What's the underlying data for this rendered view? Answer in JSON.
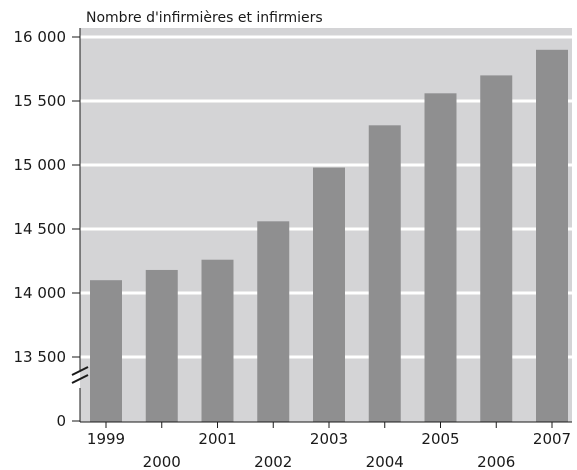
{
  "chart_data": {
    "type": "bar",
    "title": "Nombre d'infirmières et infirmiers",
    "xlabel": "",
    "ylabel": "",
    "categories": [
      "1999",
      "2000",
      "2001",
      "2002",
      "2003",
      "2004",
      "2005",
      "2006",
      "2007"
    ],
    "values": [
      14100,
      14180,
      14260,
      14560,
      14980,
      15310,
      15560,
      15700,
      15900
    ],
    "ylim": [
      13250,
      16000
    ],
    "axis_break": true,
    "yticks": [
      {
        "value": 16000,
        "label": "16 000"
      },
      {
        "value": 15500,
        "label": "15 500"
      },
      {
        "value": 15000,
        "label": "15 000"
      },
      {
        "value": 14500,
        "label": "14 500"
      },
      {
        "value": 14000,
        "label": "14 000"
      },
      {
        "value": 13500,
        "label": "13 500"
      },
      {
        "value": 0,
        "label": "0"
      }
    ],
    "grid": true,
    "legend": "none",
    "colors": {
      "plot_background": "#d4d4d6",
      "bar": "#8f8f90",
      "gridline": "#ffffff",
      "text": "#1a1a1a"
    }
  }
}
